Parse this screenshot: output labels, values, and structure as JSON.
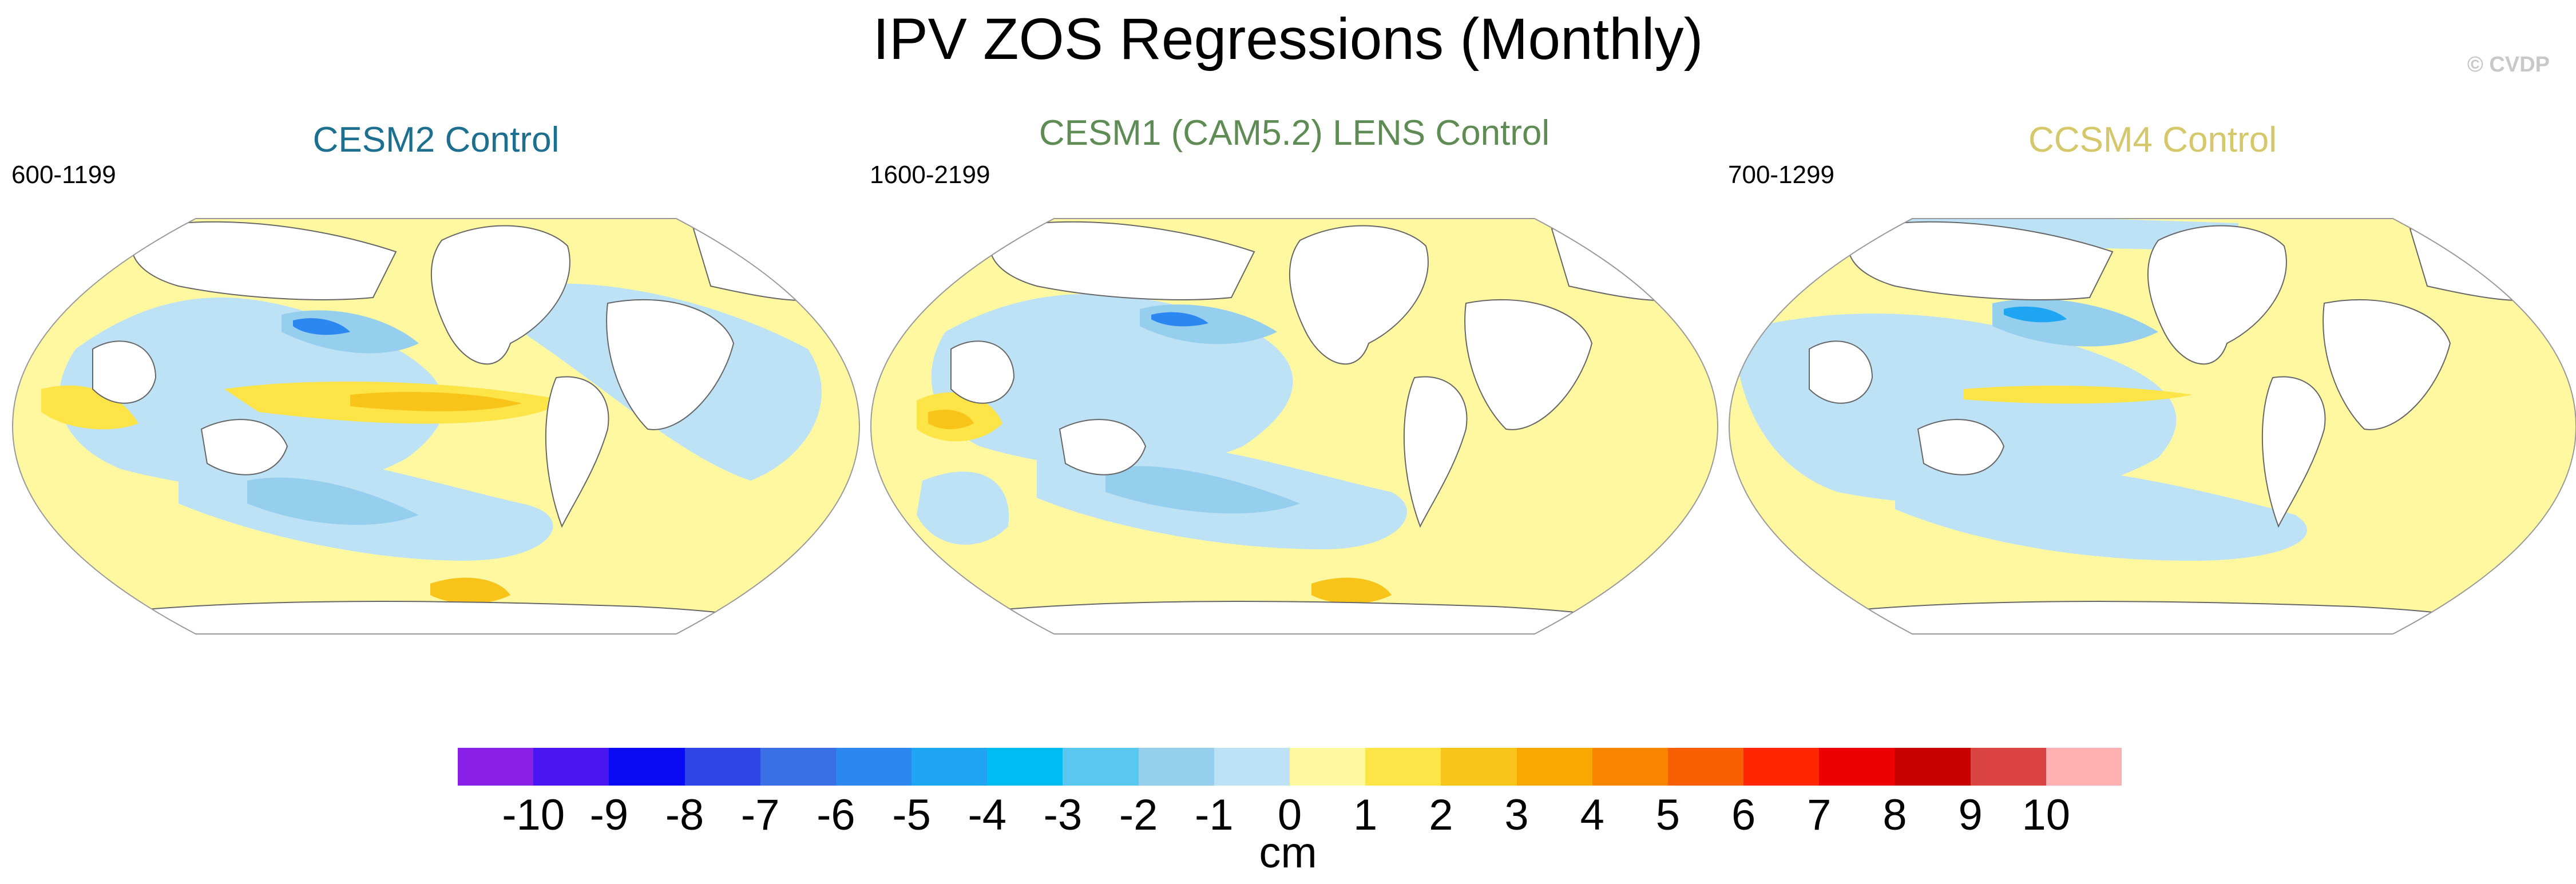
{
  "title": "IPV ZOS Regressions (Monthly)",
  "watermark": "© CVDP",
  "panels": [
    {
      "title": "CESM2 Control",
      "years": "600-1199",
      "title_color": "#1d6f8f"
    },
    {
      "title": "CESM1 (CAM5.2) LENS Control",
      "years": "1600-2199",
      "title_color": "#5f8c55"
    },
    {
      "title": "CCSM4 Control",
      "years": "700-1299",
      "title_color": "#d4c86a"
    }
  ],
  "colorbar": {
    "labels": [
      "-10",
      "-9",
      "-8",
      "-7",
      "-6",
      "-5",
      "-4",
      "-3",
      "-2",
      "-1",
      "0",
      "1",
      "2",
      "3",
      "4",
      "5",
      "6",
      "7",
      "8",
      "9",
      "10"
    ],
    "colors": [
      "#8a1fe6",
      "#4a14f0",
      "#0a0af5",
      "#2e46e6",
      "#3a70e6",
      "#2a88f0",
      "#1ea6f2",
      "#00bcf4",
      "#58c8f0",
      "#96cfee",
      "#bde2f6",
      "#fff8a0",
      "#fde447",
      "#f9c41a",
      "#f8a800",
      "#f88400",
      "#f85f00",
      "#ff2600",
      "#ee0000",
      "#c80000",
      "#dc4444",
      "#ffb0b0"
    ],
    "units": "cm"
  }
}
